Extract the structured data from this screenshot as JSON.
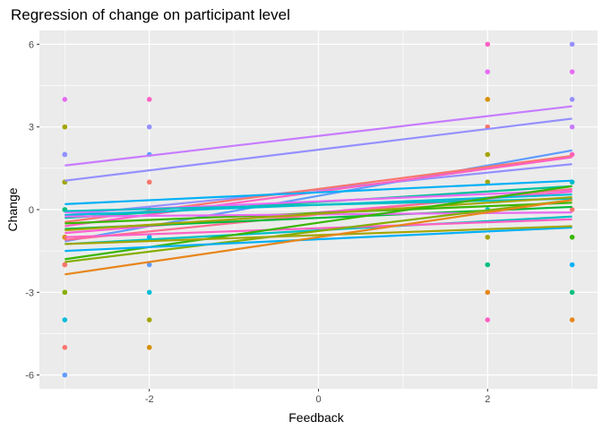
{
  "chart_data": {
    "type": "scatter",
    "title": "Regression of change on participant level",
    "xlabel": "Feedback",
    "ylabel": "Change",
    "xlim": [
      -3.3,
      3.3
    ],
    "ylim": [
      -6.5,
      6.5
    ],
    "x_ticks": [
      -2,
      0,
      2
    ],
    "x_minor_ticks": [
      -3,
      -1,
      1,
      3
    ],
    "y_ticks": [
      -6,
      -3,
      0,
      3,
      6
    ],
    "y_minor_ticks": [
      -4.5,
      -1.5,
      1.5,
      4.5
    ],
    "grid": true,
    "legend": "none",
    "background": "#ebebeb",
    "point_columns": [
      {
        "x": -3,
        "points": [
          {
            "y": 4,
            "color": "#e76bf3"
          },
          {
            "y": 3,
            "color": "#a3a500"
          },
          {
            "y": 2,
            "color": "#00b0f6"
          },
          {
            "y": 2,
            "color": "#9590ff"
          },
          {
            "y": 1,
            "color": "#39b600"
          },
          {
            "y": 1,
            "color": "#a3a500"
          },
          {
            "y": 0,
            "color": "#00bfc4"
          },
          {
            "y": 0,
            "color": "#00bf7d"
          },
          {
            "y": -1,
            "color": "#f8766d"
          },
          {
            "y": -1,
            "color": "#d89000"
          },
          {
            "y": -2,
            "color": "#e7861b"
          },
          {
            "y": -2,
            "color": "#f8766d"
          },
          {
            "y": -3,
            "color": "#a3a500"
          },
          {
            "y": -3,
            "color": "#85ad00"
          },
          {
            "y": -4,
            "color": "#00bcd8"
          },
          {
            "y": -5,
            "color": "#f8766d"
          },
          {
            "y": -6,
            "color": "#619cff"
          }
        ]
      },
      {
        "x": -2,
        "points": [
          {
            "y": 4,
            "color": "#ff61c3"
          },
          {
            "y": 3,
            "color": "#9590ff"
          },
          {
            "y": 2,
            "color": "#619cff"
          },
          {
            "y": 1,
            "color": "#f8766d"
          },
          {
            "y": 0,
            "color": "#00bf7d"
          },
          {
            "y": -1,
            "color": "#00b0f6"
          },
          {
            "y": -2,
            "color": "#619cff"
          },
          {
            "y": -3,
            "color": "#00bcd8"
          },
          {
            "y": -4,
            "color": "#a3a500"
          },
          {
            "y": -5,
            "color": "#d89000"
          }
        ]
      },
      {
        "x": 2,
        "points": [
          {
            "y": 6,
            "color": "#ff61c3"
          },
          {
            "y": 5,
            "color": "#e76bf3"
          },
          {
            "y": 4,
            "color": "#d89000"
          },
          {
            "y": 3,
            "color": "#f8766d"
          },
          {
            "y": 2,
            "color": "#a3a500"
          },
          {
            "y": 1,
            "color": "#a3a500"
          },
          {
            "y": 0,
            "color": "#00bfc4"
          },
          {
            "y": -1,
            "color": "#a3a500"
          },
          {
            "y": -2,
            "color": "#00bf7d"
          },
          {
            "y": -3,
            "color": "#e7861b"
          },
          {
            "y": -4,
            "color": "#ff61c3"
          }
        ]
      },
      {
        "x": 3,
        "points": [
          {
            "y": 6,
            "color": "#9590ff"
          },
          {
            "y": 5,
            "color": "#e76bf3"
          },
          {
            "y": 4,
            "color": "#9590ff"
          },
          {
            "y": 3,
            "color": "#c77cff"
          },
          {
            "y": 2,
            "color": "#ff61c3"
          },
          {
            "y": 1,
            "color": "#00bfc4"
          },
          {
            "y": 0,
            "color": "#f8766d"
          },
          {
            "y": -1,
            "color": "#39b600"
          },
          {
            "y": -2,
            "color": "#00b0f6"
          },
          {
            "y": -3,
            "color": "#00bf7d"
          },
          {
            "y": -4,
            "color": "#e7861b"
          }
        ]
      }
    ],
    "regression_lines": [
      {
        "x": [
          -3,
          3
        ],
        "y": [
          1.6,
          3.75
        ],
        "color": "#c77cff"
      },
      {
        "x": [
          -3,
          3
        ],
        "y": [
          1.05,
          3.3
        ],
        "color": "#9590ff"
      },
      {
        "x": [
          -3,
          3
        ],
        "y": [
          -1.15,
          2.15
        ],
        "color": "#619cff"
      },
      {
        "x": [
          -3,
          3
        ],
        "y": [
          -0.2,
          1.65
        ],
        "color": "#9590ff"
      },
      {
        "x": [
          -3,
          3
        ],
        "y": [
          -0.45,
          1.95
        ],
        "color": "#f8766d"
      },
      {
        "x": [
          -3,
          3
        ],
        "y": [
          -0.6,
          1.9
        ],
        "color": "#ff61c3"
      },
      {
        "x": [
          -3,
          3
        ],
        "y": [
          0.2,
          1.05
        ],
        "color": "#00b0f6"
      },
      {
        "x": [
          -3,
          3
        ],
        "y": [
          -0.3,
          0.85
        ],
        "color": "#00c19a"
      },
      {
        "x": [
          -3,
          3
        ],
        "y": [
          -0.1,
          0.7
        ],
        "color": "#e76bf3"
      },
      {
        "x": [
          -3,
          3
        ],
        "y": [
          -0.85,
          0.65
        ],
        "color": "#fd61d1"
      },
      {
        "x": [
          -3,
          3
        ],
        "y": [
          -1.1,
          0.75
        ],
        "color": "#ff6c91"
      },
      {
        "x": [
          -3,
          3
        ],
        "y": [
          -0.2,
          0.55
        ],
        "color": "#00bcd8"
      },
      {
        "x": [
          -3,
          3
        ],
        "y": [
          -0.05,
          0.4
        ],
        "color": "#00bfc4"
      },
      {
        "x": [
          -3,
          3
        ],
        "y": [
          -0.5,
          0.25
        ],
        "color": "#39b600"
      },
      {
        "x": [
          -3,
          3
        ],
        "y": [
          -0.7,
          0.1
        ],
        "color": "#00ba38"
      },
      {
        "x": [
          -3,
          3
        ],
        "y": [
          -0.25,
          -0.1
        ],
        "color": "#e76bf3"
      },
      {
        "x": [
          -3,
          3
        ],
        "y": [
          -0.75,
          0.45
        ],
        "color": "#a3a500"
      },
      {
        "x": [
          -3,
          3
        ],
        "y": [
          -1.25,
          -0.25
        ],
        "color": "#00bfc4"
      },
      {
        "x": [
          -3,
          3
        ],
        "y": [
          -1.0,
          -0.35
        ],
        "color": "#ff61c3"
      },
      {
        "x": [
          -3,
          3
        ],
        "y": [
          -1.8,
          0.85
        ],
        "color": "#39b600"
      },
      {
        "x": [
          -3,
          3
        ],
        "y": [
          -1.9,
          0.35
        ],
        "color": "#85ad00"
      },
      {
        "x": [
          -3,
          3
        ],
        "y": [
          -1.5,
          -0.65
        ],
        "color": "#00b0f6"
      },
      {
        "x": [
          -3,
          3
        ],
        "y": [
          -1.25,
          -0.6
        ],
        "color": "#a3a500"
      },
      {
        "x": [
          -3,
          3
        ],
        "y": [
          -2.35,
          0.35
        ],
        "color": "#e7861b"
      }
    ]
  }
}
